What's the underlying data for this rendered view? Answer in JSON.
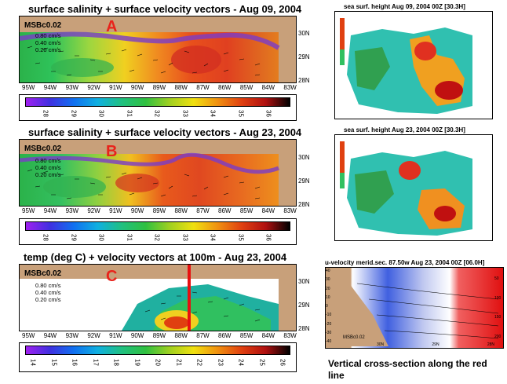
{
  "panels": [
    {
      "title": "surface salinity  + surface velocity vectors - Aug 09, 2004",
      "model": "MSBc0.02",
      "letter": "A",
      "scale": [
        "0.80 cm/s",
        "0.40 cm/s",
        "0.20 cm/s"
      ],
      "colorbar_ticks": [
        "28",
        "29",
        "30",
        "31",
        "32",
        "33",
        "34",
        "35",
        "36"
      ]
    },
    {
      "title": "surface salinity  + surface velocity vectors - Aug 23, 2004",
      "model": "MSBc0.02",
      "letter": "B",
      "scale": [
        "0.80 cm/s",
        "0.40 cm/s",
        "0.20 cm/s"
      ],
      "colorbar_ticks": [
        "28",
        "29",
        "30",
        "31",
        "32",
        "33",
        "34",
        "35",
        "36"
      ]
    },
    {
      "title": "temp (deg C)  + velocity vectors  at 100m - Aug 23, 2004",
      "model": "MSBc0.02",
      "letter": "C",
      "scale": [
        "0.80 cm/s",
        "0.40 cm/s",
        "0.20 cm/s"
      ],
      "colorbar_ticks": [
        "14",
        "15",
        "16",
        "17",
        "18",
        "19",
        "20",
        "21",
        "22",
        "23",
        "24",
        "25",
        "26"
      ]
    }
  ],
  "lat_labels": [
    "30N",
    "29N",
    "28N"
  ],
  "lon_labels": [
    "95W",
    "94W",
    "93W",
    "92W",
    "91W",
    "90W",
    "89W",
    "88W",
    "87W",
    "86W",
    "85W",
    "84W",
    "83W"
  ],
  "ssh_panels": [
    {
      "title": "sea surf. height     Aug 09, 2004  00Z  [30.3H]"
    },
    {
      "title": "sea surf. height     Aug 23, 2004  00Z  [30.3H]"
    }
  ],
  "section": {
    "title": "u-velocity merid.sec. 87.50w    Aug 23, 2004  00Z  [06.0H]",
    "model": "MSBc0.02",
    "left_ticks": [
      "40",
      "30",
      "20",
      "10",
      "0",
      "-10",
      "-20",
      "-30",
      "-40"
    ],
    "right_ticks": [
      "50",
      "100",
      "150",
      "200"
    ],
    "bottom_ticks": [
      "30N",
      "29N",
      "28N"
    ]
  },
  "caption": "Vertical cross-section along the red line",
  "colors": {
    "letter": "#e8231b",
    "land": "#c8a07a",
    "section_line": "#e81010"
  }
}
